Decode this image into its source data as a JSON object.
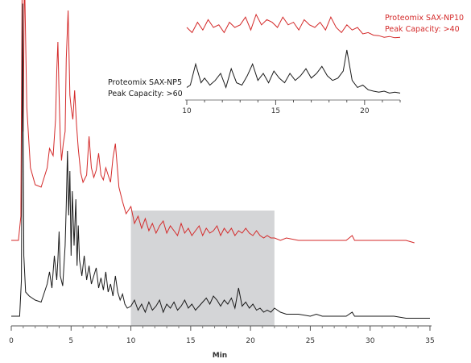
{
  "chart_data": {
    "type": "line",
    "xlabel": "Min",
    "xlim": [
      0,
      35
    ],
    "x_ticks": [
      "0",
      "5",
      "10",
      "15",
      "20",
      "25",
      "30",
      "35"
    ],
    "highlight_range": [
      10,
      22
    ],
    "series": [
      {
        "name": "Proteomix SAX-NP10",
        "color": "#d42a2a",
        "annotation_lines": [
          "Proteomix SAX-NP10",
          "Peak Capacity: >40"
        ],
        "x": [
          0,
          0.6,
          0.8,
          0.9,
          1.0,
          1.1,
          1.3,
          1.6,
          2.0,
          2.5,
          3.0,
          3.2,
          3.5,
          3.7,
          3.8,
          3.9,
          4.0,
          4.1,
          4.2,
          4.35,
          4.5,
          4.6,
          4.75,
          4.9,
          5.0,
          5.15,
          5.3,
          5.45,
          5.6,
          5.8,
          6.0,
          6.3,
          6.5,
          6.7,
          6.9,
          7.1,
          7.3,
          7.5,
          7.7,
          7.9,
          8.1,
          8.3,
          8.5,
          8.7,
          9.0,
          9.3,
          9.6,
          10.0,
          10.3,
          10.6,
          10.9,
          11.2,
          11.5,
          11.8,
          12.1,
          12.4,
          12.7,
          13.0,
          13.3,
          13.6,
          13.9,
          14.2,
          14.5,
          14.8,
          15.1,
          15.4,
          15.7,
          16.0,
          16.3,
          16.6,
          16.9,
          17.2,
          17.5,
          17.8,
          18.1,
          18.4,
          18.7,
          19.0,
          19.3,
          19.6,
          19.9,
          20.2,
          20.5,
          20.8,
          21.1,
          21.4,
          21.7,
          22.0,
          22.5,
          23.0,
          24.0,
          25.0,
          26.0,
          27.0,
          28.0,
          28.5,
          28.7,
          29.0,
          30.0,
          31.0,
          32.0,
          33.0,
          33.7
        ],
        "y": [
          0,
          0,
          0.1,
          1.0,
          0.45,
          1.12,
          0.55,
          0.3,
          0.23,
          0.22,
          0.3,
          0.38,
          0.35,
          0.5,
          0.7,
          0.82,
          0.6,
          0.42,
          0.33,
          0.4,
          0.45,
          0.75,
          0.95,
          0.6,
          0.55,
          0.5,
          0.62,
          0.48,
          0.38,
          0.28,
          0.24,
          0.27,
          0.43,
          0.3,
          0.26,
          0.29,
          0.36,
          0.27,
          0.25,
          0.3,
          0.27,
          0.24,
          0.34,
          0.4,
          0.22,
          0.16,
          0.11,
          0.14,
          0.07,
          0.1,
          0.05,
          0.09,
          0.04,
          0.07,
          0.03,
          0.06,
          0.08,
          0.03,
          0.06,
          0.04,
          0.02,
          0.07,
          0.03,
          0.05,
          0.02,
          0.04,
          0.06,
          0.02,
          0.05,
          0.03,
          0.04,
          0.06,
          0.02,
          0.05,
          0.03,
          0.05,
          0.02,
          0.04,
          0.03,
          0.05,
          0.03,
          0.02,
          0.04,
          0.02,
          0.01,
          0.02,
          0.01,
          0.01,
          0.0,
          0.01,
          0.0,
          0.0,
          0.0,
          0.0,
          0.0,
          0.02,
          0.0,
          0.0,
          0.0,
          0.0,
          0.0,
          0.0,
          -0.01
        ]
      },
      {
        "name": "Proteomix SAX-NP5",
        "color": "#1a1a1a",
        "annotation_lines": [
          "Proteomix SAX-NP5",
          "Peak Capacity: >60"
        ],
        "x": [
          0,
          0.7,
          0.85,
          0.95,
          1.05,
          1.2,
          1.5,
          2.0,
          2.5,
          3.0,
          3.2,
          3.4,
          3.6,
          3.8,
          3.9,
          4.0,
          4.1,
          4.3,
          4.5,
          4.6,
          4.7,
          4.8,
          4.9,
          5.0,
          5.1,
          5.25,
          5.4,
          5.5,
          5.6,
          5.7,
          5.9,
          6.1,
          6.3,
          6.5,
          6.7,
          6.9,
          7.1,
          7.3,
          7.5,
          7.7,
          7.9,
          8.1,
          8.3,
          8.5,
          8.7,
          8.9,
          9.1,
          9.3,
          9.5,
          9.7,
          10.0,
          10.3,
          10.6,
          10.9,
          11.2,
          11.5,
          11.8,
          12.1,
          12.4,
          12.7,
          13.0,
          13.3,
          13.6,
          13.9,
          14.2,
          14.5,
          14.8,
          15.1,
          15.4,
          15.7,
          16.0,
          16.3,
          16.6,
          16.9,
          17.2,
          17.5,
          17.8,
          18.1,
          18.4,
          18.7,
          19.0,
          19.3,
          19.6,
          19.9,
          20.2,
          20.5,
          20.8,
          21.1,
          21.4,
          21.7,
          22.0,
          22.5,
          23.0,
          24.0,
          25.0,
          25.5,
          26.0,
          27.0,
          28.0,
          28.5,
          28.7,
          29.0,
          30.0,
          31.0,
          32.0,
          33.0,
          34.0,
          35.0
        ],
        "y": [
          0,
          0,
          0.18,
          1.55,
          0.3,
          0.12,
          0.1,
          0.08,
          0.07,
          0.16,
          0.22,
          0.14,
          0.3,
          0.18,
          0.28,
          0.42,
          0.2,
          0.15,
          0.35,
          0.55,
          0.82,
          0.5,
          0.72,
          0.3,
          0.62,
          0.35,
          0.58,
          0.25,
          0.45,
          0.28,
          0.2,
          0.3,
          0.18,
          0.25,
          0.16,
          0.2,
          0.24,
          0.14,
          0.19,
          0.13,
          0.22,
          0.12,
          0.16,
          0.1,
          0.2,
          0.12,
          0.08,
          0.11,
          0.06,
          0.04,
          0.05,
          0.08,
          0.03,
          0.06,
          0.02,
          0.07,
          0.03,
          0.05,
          0.08,
          0.02,
          0.06,
          0.04,
          0.07,
          0.03,
          0.05,
          0.08,
          0.04,
          0.06,
          0.03,
          0.05,
          0.07,
          0.09,
          0.06,
          0.1,
          0.08,
          0.05,
          0.08,
          0.06,
          0.09,
          0.04,
          0.14,
          0.05,
          0.07,
          0.04,
          0.06,
          0.03,
          0.04,
          0.02,
          0.03,
          0.02,
          0.04,
          0.02,
          0.01,
          0.01,
          0.0,
          0.01,
          0.0,
          0.0,
          0.0,
          0.02,
          0.0,
          0.0,
          0.0,
          0.0,
          0.0,
          -0.01,
          -0.01,
          -0.01
        ]
      }
    ],
    "insets": [
      {
        "series": "Proteomix SAX-NP10",
        "x": [
          10,
          10.3,
          10.6,
          10.9,
          11.2,
          11.5,
          11.8,
          12.1,
          12.4,
          12.7,
          13.0,
          13.3,
          13.6,
          13.9,
          14.2,
          14.5,
          14.8,
          15.1,
          15.4,
          15.7,
          16.0,
          16.3,
          16.6,
          16.9,
          17.2,
          17.5,
          17.8,
          18.1,
          18.4,
          18.7,
          19.0,
          19.3,
          19.6,
          19.9,
          20.2,
          20.5,
          20.8,
          21.1,
          21.4,
          21.7,
          22.0
        ],
        "y": [
          0.5,
          0.3,
          0.7,
          0.4,
          0.8,
          0.5,
          0.6,
          0.3,
          0.7,
          0.5,
          0.6,
          0.9,
          0.4,
          1.0,
          0.6,
          0.8,
          0.7,
          0.5,
          0.9,
          0.6,
          0.7,
          0.4,
          0.8,
          0.6,
          0.5,
          0.7,
          0.4,
          0.9,
          0.5,
          0.3,
          0.6,
          0.4,
          0.5,
          0.25,
          0.3,
          0.2,
          0.18,
          0.12,
          0.15,
          0.1,
          0.12
        ]
      },
      {
        "series": "Proteomix SAX-NP5",
        "x": [
          10,
          10.2,
          10.5,
          10.8,
          11.0,
          11.3,
          11.6,
          11.9,
          12.2,
          12.5,
          12.8,
          13.1,
          13.4,
          13.7,
          14.0,
          14.3,
          14.6,
          14.9,
          15.2,
          15.5,
          15.8,
          16.1,
          16.4,
          16.7,
          17.0,
          17.3,
          17.6,
          17.9,
          18.2,
          18.5,
          18.8,
          19.0,
          19.3,
          19.6,
          19.9,
          20.2,
          20.5,
          20.8,
          21.1,
          21.4,
          21.7,
          22.0
        ],
        "y": [
          0.2,
          0.25,
          0.7,
          0.3,
          0.4,
          0.25,
          0.35,
          0.5,
          0.2,
          0.6,
          0.3,
          0.25,
          0.45,
          0.7,
          0.35,
          0.5,
          0.3,
          0.55,
          0.4,
          0.3,
          0.5,
          0.35,
          0.45,
          0.6,
          0.4,
          0.5,
          0.65,
          0.45,
          0.35,
          0.4,
          0.55,
          1.0,
          0.35,
          0.2,
          0.25,
          0.15,
          0.12,
          0.1,
          0.12,
          0.08,
          0.1,
          0.08
        ]
      }
    ],
    "inset_x_ticks": [
      "10",
      "15",
      "20"
    ],
    "inset_xlim": [
      10,
      22
    ]
  }
}
